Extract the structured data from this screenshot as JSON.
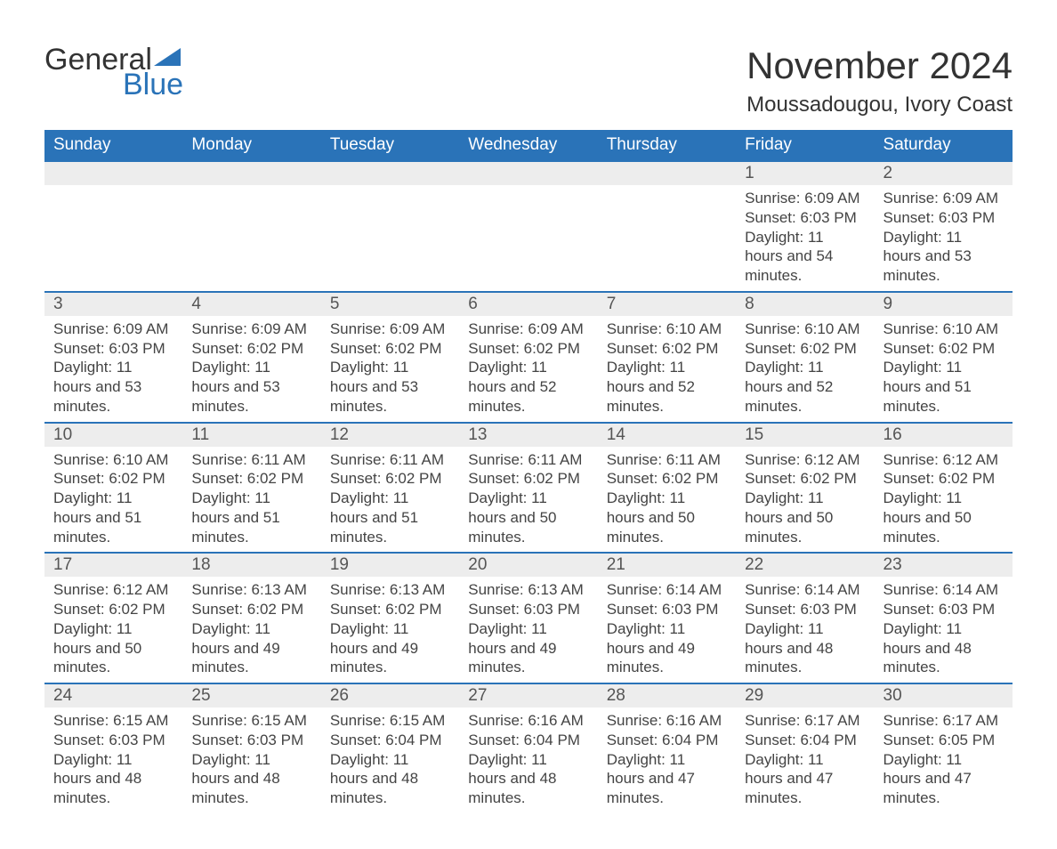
{
  "logo": {
    "text1": "General",
    "text2": "Blue",
    "accent_color": "#2a73b8"
  },
  "title": "November 2024",
  "location": "Moussadougou, Ivory Coast",
  "colors": {
    "header_bg": "#2a73b8",
    "header_text": "#ffffff",
    "daynum_bg": "#ededed",
    "week_border": "#2a73b8",
    "body_text": "#444444",
    "page_bg": "#ffffff"
  },
  "day_headers": [
    "Sunday",
    "Monday",
    "Tuesday",
    "Wednesday",
    "Thursday",
    "Friday",
    "Saturday"
  ],
  "labels": {
    "sunrise": "Sunrise:",
    "sunset": "Sunset:",
    "daylight": "Daylight:"
  },
  "weeks": [
    [
      null,
      null,
      null,
      null,
      null,
      {
        "n": "1",
        "sunrise": "6:09 AM",
        "sunset": "6:03 PM",
        "daylight": "11 hours and 54 minutes."
      },
      {
        "n": "2",
        "sunrise": "6:09 AM",
        "sunset": "6:03 PM",
        "daylight": "11 hours and 53 minutes."
      }
    ],
    [
      {
        "n": "3",
        "sunrise": "6:09 AM",
        "sunset": "6:03 PM",
        "daylight": "11 hours and 53 minutes."
      },
      {
        "n": "4",
        "sunrise": "6:09 AM",
        "sunset": "6:02 PM",
        "daylight": "11 hours and 53 minutes."
      },
      {
        "n": "5",
        "sunrise": "6:09 AM",
        "sunset": "6:02 PM",
        "daylight": "11 hours and 53 minutes."
      },
      {
        "n": "6",
        "sunrise": "6:09 AM",
        "sunset": "6:02 PM",
        "daylight": "11 hours and 52 minutes."
      },
      {
        "n": "7",
        "sunrise": "6:10 AM",
        "sunset": "6:02 PM",
        "daylight": "11 hours and 52 minutes."
      },
      {
        "n": "8",
        "sunrise": "6:10 AM",
        "sunset": "6:02 PM",
        "daylight": "11 hours and 52 minutes."
      },
      {
        "n": "9",
        "sunrise": "6:10 AM",
        "sunset": "6:02 PM",
        "daylight": "11 hours and 51 minutes."
      }
    ],
    [
      {
        "n": "10",
        "sunrise": "6:10 AM",
        "sunset": "6:02 PM",
        "daylight": "11 hours and 51 minutes."
      },
      {
        "n": "11",
        "sunrise": "6:11 AM",
        "sunset": "6:02 PM",
        "daylight": "11 hours and 51 minutes."
      },
      {
        "n": "12",
        "sunrise": "6:11 AM",
        "sunset": "6:02 PM",
        "daylight": "11 hours and 51 minutes."
      },
      {
        "n": "13",
        "sunrise": "6:11 AM",
        "sunset": "6:02 PM",
        "daylight": "11 hours and 50 minutes."
      },
      {
        "n": "14",
        "sunrise": "6:11 AM",
        "sunset": "6:02 PM",
        "daylight": "11 hours and 50 minutes."
      },
      {
        "n": "15",
        "sunrise": "6:12 AM",
        "sunset": "6:02 PM",
        "daylight": "11 hours and 50 minutes."
      },
      {
        "n": "16",
        "sunrise": "6:12 AM",
        "sunset": "6:02 PM",
        "daylight": "11 hours and 50 minutes."
      }
    ],
    [
      {
        "n": "17",
        "sunrise": "6:12 AM",
        "sunset": "6:02 PM",
        "daylight": "11 hours and 50 minutes."
      },
      {
        "n": "18",
        "sunrise": "6:13 AM",
        "sunset": "6:02 PM",
        "daylight": "11 hours and 49 minutes."
      },
      {
        "n": "19",
        "sunrise": "6:13 AM",
        "sunset": "6:02 PM",
        "daylight": "11 hours and 49 minutes."
      },
      {
        "n": "20",
        "sunrise": "6:13 AM",
        "sunset": "6:03 PM",
        "daylight": "11 hours and 49 minutes."
      },
      {
        "n": "21",
        "sunrise": "6:14 AM",
        "sunset": "6:03 PM",
        "daylight": "11 hours and 49 minutes."
      },
      {
        "n": "22",
        "sunrise": "6:14 AM",
        "sunset": "6:03 PM",
        "daylight": "11 hours and 48 minutes."
      },
      {
        "n": "23",
        "sunrise": "6:14 AM",
        "sunset": "6:03 PM",
        "daylight": "11 hours and 48 minutes."
      }
    ],
    [
      {
        "n": "24",
        "sunrise": "6:15 AM",
        "sunset": "6:03 PM",
        "daylight": "11 hours and 48 minutes."
      },
      {
        "n": "25",
        "sunrise": "6:15 AM",
        "sunset": "6:03 PM",
        "daylight": "11 hours and 48 minutes."
      },
      {
        "n": "26",
        "sunrise": "6:15 AM",
        "sunset": "6:04 PM",
        "daylight": "11 hours and 48 minutes."
      },
      {
        "n": "27",
        "sunrise": "6:16 AM",
        "sunset": "6:04 PM",
        "daylight": "11 hours and 48 minutes."
      },
      {
        "n": "28",
        "sunrise": "6:16 AM",
        "sunset": "6:04 PM",
        "daylight": "11 hours and 47 minutes."
      },
      {
        "n": "29",
        "sunrise": "6:17 AM",
        "sunset": "6:04 PM",
        "daylight": "11 hours and 47 minutes."
      },
      {
        "n": "30",
        "sunrise": "6:17 AM",
        "sunset": "6:05 PM",
        "daylight": "11 hours and 47 minutes."
      }
    ]
  ]
}
